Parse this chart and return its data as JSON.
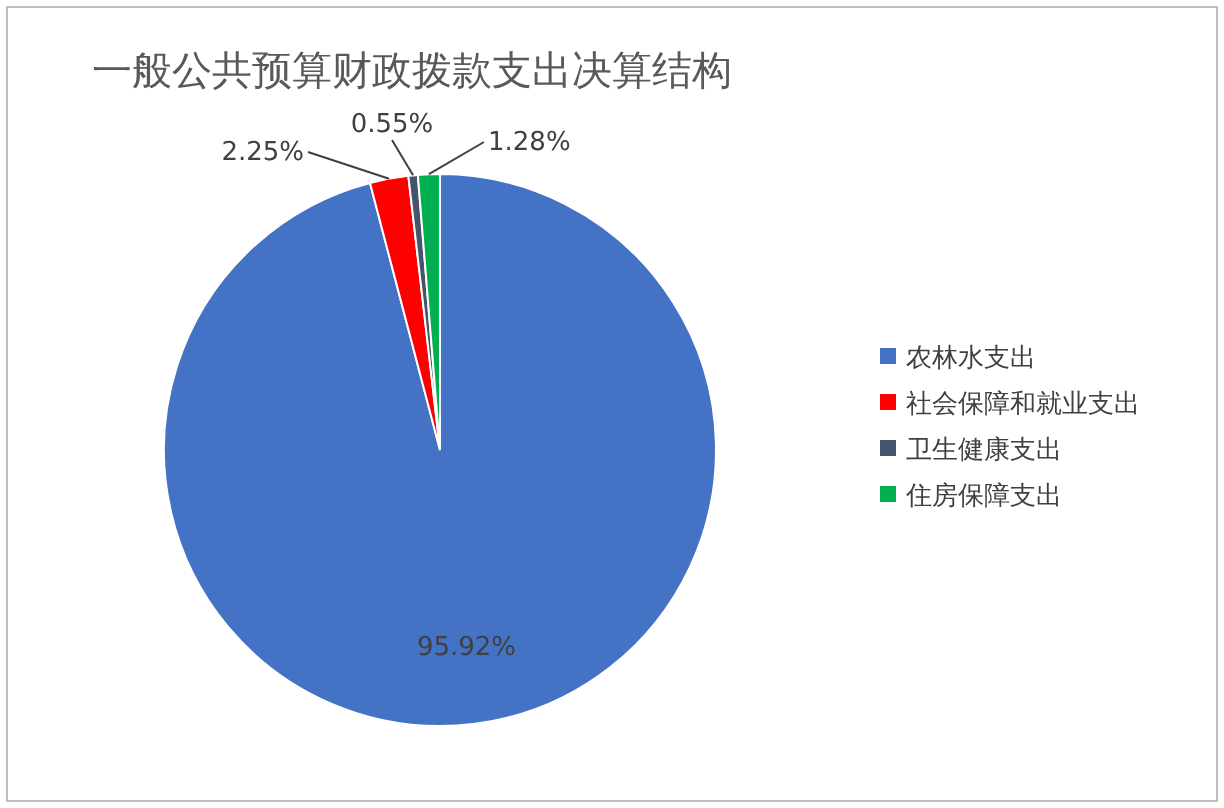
{
  "chart_data": {
    "type": "pie",
    "title": "一般公共预算财政拨款支出决算结构",
    "categories": [
      "农林水支出",
      "社会保障和就业支出",
      "卫生健康支出",
      "住房保障支出"
    ],
    "values": [
      95.92,
      2.25,
      0.55,
      1.28
    ],
    "colors": [
      "#4472c4",
      "#ff0000",
      "#44546a",
      "#00b050"
    ],
    "value_labels": [
      "95.92%",
      "2.25%",
      "0.55%",
      "1.28%"
    ],
    "legend": "right"
  }
}
